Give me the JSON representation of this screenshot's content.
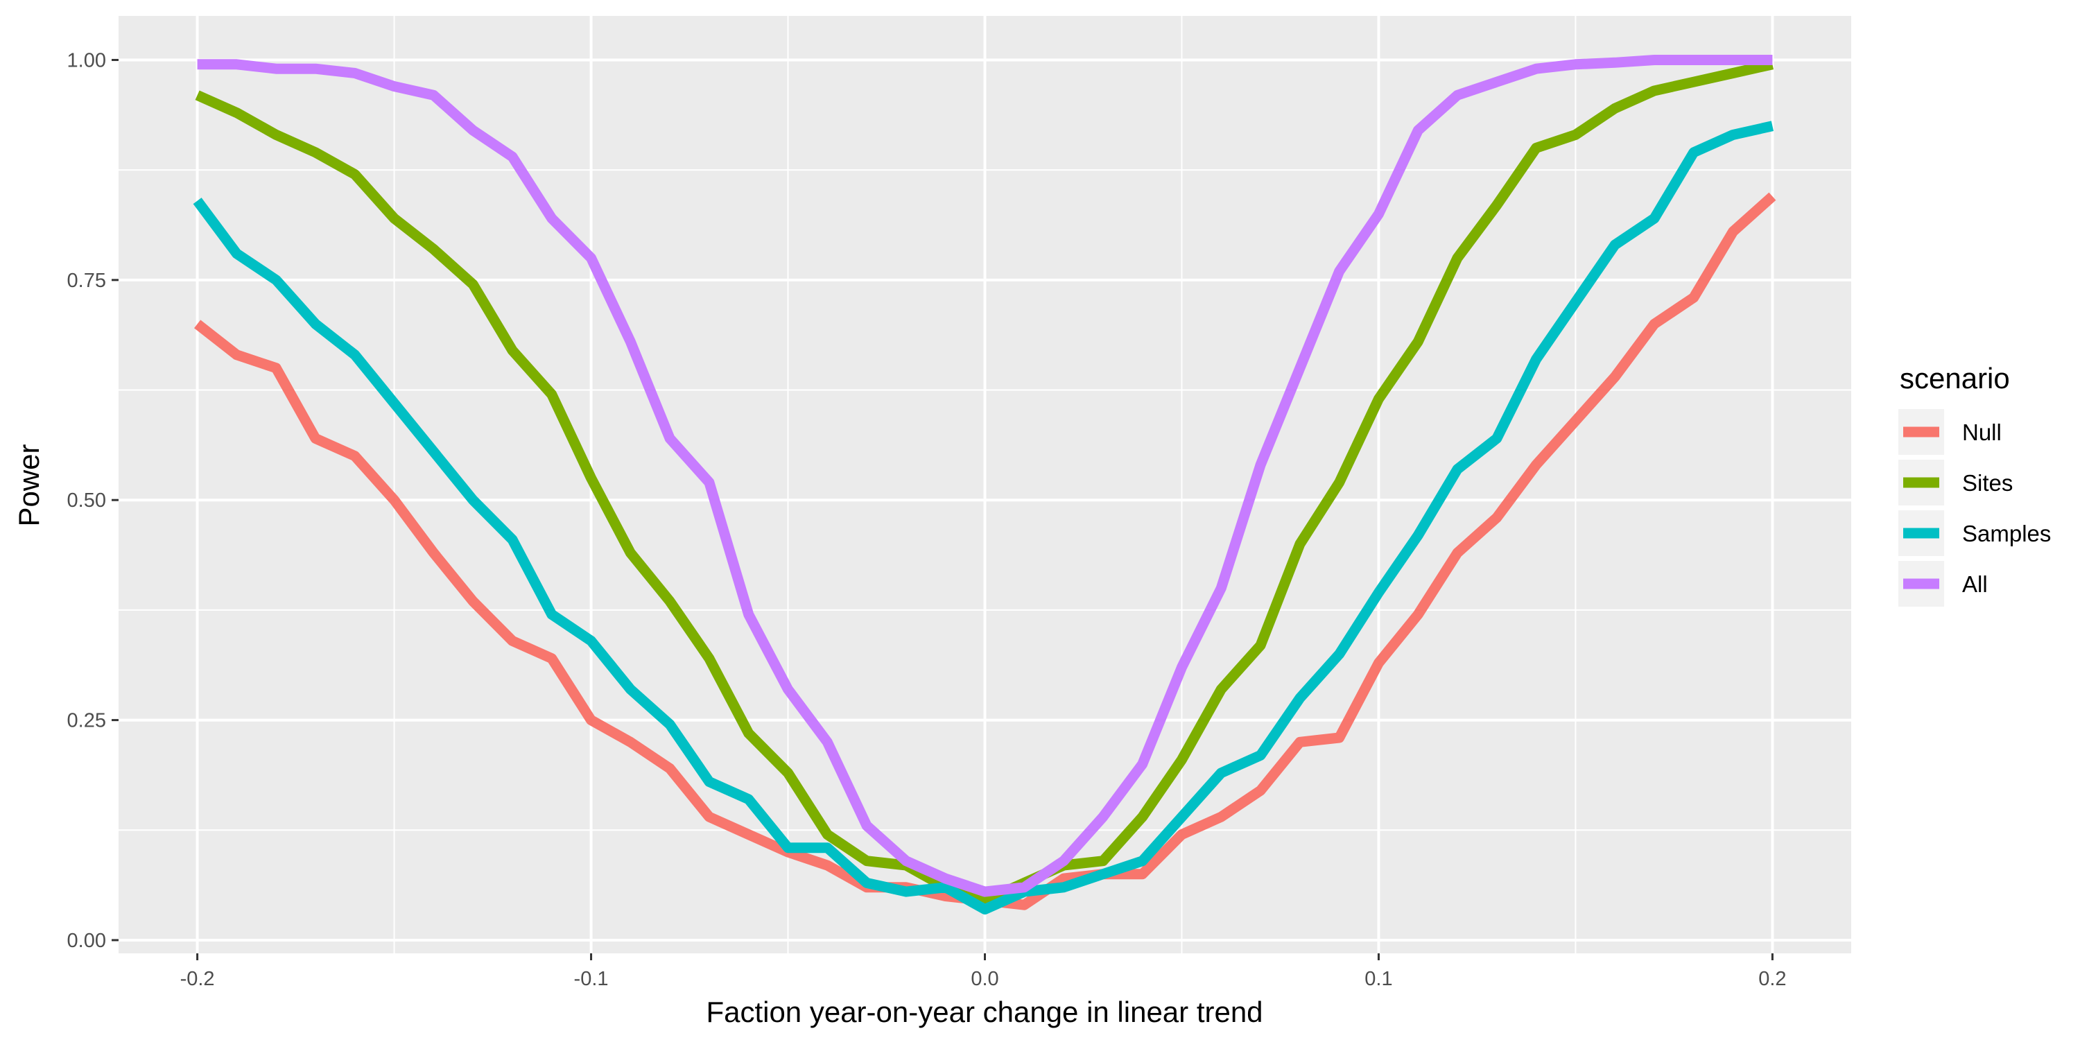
{
  "chart_data": {
    "type": "line",
    "title": "",
    "xlabel": "Faction year-on-year change in linear trend",
    "ylabel": "Power",
    "xlim": [
      -0.22,
      0.22
    ],
    "ylim": [
      -0.015,
      1.05
    ],
    "x_ticks": [
      -0.2,
      -0.1,
      0.0,
      0.1,
      0.2
    ],
    "x_tick_labels": [
      "-0.2",
      "-0.1",
      "0.0",
      "0.1",
      "0.2"
    ],
    "x_minor_ticks": [
      -0.15,
      -0.05,
      0.05,
      0.15
    ],
    "y_ticks": [
      0.0,
      0.25,
      0.5,
      0.75,
      1.0
    ],
    "y_tick_labels": [
      "0.00",
      "0.25",
      "0.50",
      "0.75",
      "1.00"
    ],
    "y_minor_ticks": [
      0.125,
      0.375,
      0.625,
      0.875
    ],
    "grid": true,
    "legend": {
      "title": "scenario",
      "position": "right"
    },
    "x": [
      -0.2,
      -0.19,
      -0.18,
      -0.17,
      -0.16,
      -0.15,
      -0.14,
      -0.13,
      -0.12,
      -0.11,
      -0.1,
      -0.09,
      -0.08,
      -0.07,
      -0.06,
      -0.05,
      -0.04,
      -0.03,
      -0.02,
      -0.01,
      0.0,
      0.01,
      0.02,
      0.03,
      0.04,
      0.05,
      0.06,
      0.07,
      0.08,
      0.09,
      0.1,
      0.11,
      0.12,
      0.13,
      0.14,
      0.15,
      0.16,
      0.17,
      0.18,
      0.19,
      0.2
    ],
    "series": [
      {
        "name": "Null",
        "color": "#F8766D",
        "values": [
          0.7,
          0.665,
          0.65,
          0.57,
          0.55,
          0.5,
          0.44,
          0.385,
          0.34,
          0.32,
          0.25,
          0.225,
          0.195,
          0.14,
          0.12,
          0.1,
          0.085,
          0.06,
          0.06,
          0.05,
          0.045,
          0.04,
          0.07,
          0.075,
          0.075,
          0.12,
          0.14,
          0.17,
          0.225,
          0.23,
          0.315,
          0.37,
          0.44,
          0.48,
          0.54,
          0.59,
          0.64,
          0.7,
          0.73,
          0.805,
          0.845
        ]
      },
      {
        "name": "Sites",
        "color": "#7CAE00",
        "values": [
          0.96,
          0.94,
          0.915,
          0.895,
          0.87,
          0.82,
          0.785,
          0.745,
          0.67,
          0.62,
          0.525,
          0.44,
          0.385,
          0.32,
          0.235,
          0.19,
          0.12,
          0.09,
          0.085,
          0.06,
          0.045,
          0.065,
          0.085,
          0.09,
          0.14,
          0.205,
          0.285,
          0.335,
          0.45,
          0.52,
          0.615,
          0.68,
          0.775,
          0.835,
          0.9,
          0.915,
          0.945,
          0.965,
          0.975,
          0.985,
          0.995
        ]
      },
      {
        "name": "Samples",
        "color": "#00BFC4",
        "values": [
          0.84,
          0.78,
          0.75,
          0.7,
          0.665,
          0.61,
          0.555,
          0.5,
          0.455,
          0.37,
          0.34,
          0.285,
          0.245,
          0.18,
          0.16,
          0.105,
          0.105,
          0.065,
          0.055,
          0.06,
          0.035,
          0.055,
          0.06,
          0.075,
          0.09,
          0.14,
          0.19,
          0.21,
          0.275,
          0.325,
          0.395,
          0.46,
          0.535,
          0.57,
          0.66,
          0.725,
          0.79,
          0.82,
          0.895,
          0.915,
          0.925
        ]
      },
      {
        "name": "All",
        "color": "#C77CFF",
        "values": [
          0.995,
          0.995,
          0.99,
          0.99,
          0.985,
          0.97,
          0.96,
          0.92,
          0.89,
          0.82,
          0.775,
          0.68,
          0.57,
          0.52,
          0.37,
          0.285,
          0.225,
          0.13,
          0.09,
          0.07,
          0.055,
          0.06,
          0.09,
          0.14,
          0.2,
          0.31,
          0.4,
          0.54,
          0.65,
          0.76,
          0.825,
          0.92,
          0.96,
          0.975,
          0.99,
          0.995,
          0.997,
          1.0,
          1.0,
          1.0,
          1.0
        ]
      }
    ]
  }
}
